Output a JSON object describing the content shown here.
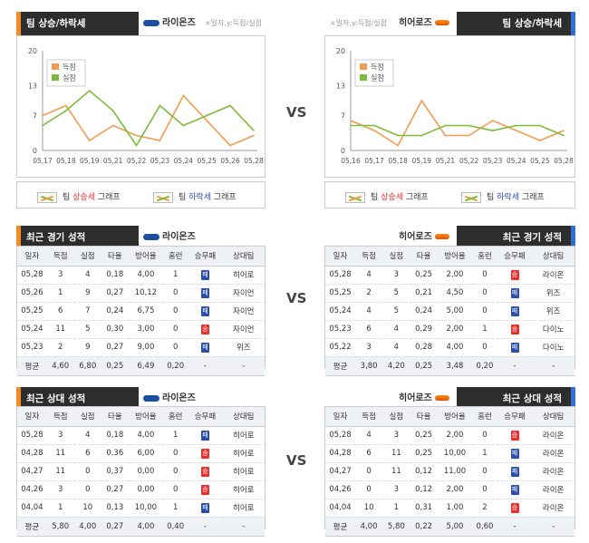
{
  "sections": {
    "trend_title": "팀 상승/하락세",
    "recent_title": "최근 경기 성적",
    "h2h_title": "최근 상대 성적"
  },
  "vs_label": "VS",
  "axis_note": "×일자,y:득점/실점",
  "teams": {
    "left": {
      "name": "라이온즈",
      "logo": "samsung-logo"
    },
    "right": {
      "name": "히어로즈",
      "logo": "heroes-logo"
    }
  },
  "legend": {
    "scored": "득점",
    "allowed": "실점",
    "up_prefix": "팀 ",
    "up_word": "상승세",
    "down_prefix": "팀 ",
    "down_word": "하락세",
    "suffix": " 그래프"
  },
  "colors": {
    "scored": "#f29b50",
    "allowed": "#7cbb3a",
    "win": "#e8312f",
    "loss": "#2d4ea8",
    "left_accent": "#f28c1e",
    "right_accent": "#2e6fd8"
  },
  "table_headers": [
    "일자",
    "득점",
    "실점",
    "타율",
    "방어율",
    "홈런",
    "승무패",
    "상대팀"
  ],
  "result_labels": {
    "W": "승",
    "L": "패"
  },
  "left_recent": {
    "rows": [
      [
        "05,28",
        "3",
        "4",
        "0,18",
        "4,00",
        "1",
        "L",
        "히어로"
      ],
      [
        "05,26",
        "1",
        "9",
        "0,27",
        "10,12",
        "0",
        "L",
        "자이언"
      ],
      [
        "05,25",
        "6",
        "7",
        "0,24",
        "6,75",
        "0",
        "L",
        "자이언"
      ],
      [
        "05,24",
        "11",
        "5",
        "0,30",
        "3,00",
        "0",
        "W",
        "자이언"
      ],
      [
        "05,23",
        "2",
        "9",
        "0,27",
        "9,00",
        "0",
        "L",
        "위즈"
      ]
    ],
    "avg": [
      "평균",
      "4,60",
      "6,80",
      "0,25",
      "6,49",
      "0,20",
      "-",
      "-"
    ]
  },
  "right_recent": {
    "rows": [
      [
        "05,28",
        "4",
        "3",
        "0,25",
        "2,00",
        "0",
        "W",
        "라이온"
      ],
      [
        "05,25",
        "2",
        "5",
        "0,21",
        "4,50",
        "0",
        "L",
        "위즈"
      ],
      [
        "05,24",
        "4",
        "5",
        "0,24",
        "5,00",
        "0",
        "L",
        "위즈"
      ],
      [
        "05,23",
        "6",
        "4",
        "0,29",
        "2,00",
        "1",
        "W",
        "다이노"
      ],
      [
        "05,22",
        "3",
        "4",
        "0,28",
        "4,00",
        "0",
        "L",
        "다이노"
      ]
    ],
    "avg": [
      "평균",
      "3,80",
      "4,20",
      "0,25",
      "3,48",
      "0,20",
      "-",
      "-"
    ]
  },
  "left_h2h": {
    "rows": [
      [
        "05,28",
        "3",
        "4",
        "0,18",
        "4,00",
        "1",
        "L",
        "히어로"
      ],
      [
        "04,28",
        "11",
        "6",
        "0,36",
        "6,00",
        "0",
        "W",
        "히어로"
      ],
      [
        "04,27",
        "11",
        "0",
        "0,37",
        "0,00",
        "0",
        "W",
        "히어로"
      ],
      [
        "04,26",
        "3",
        "0",
        "0,27",
        "0,00",
        "0",
        "W",
        "히어로"
      ],
      [
        "04,04",
        "1",
        "10",
        "0,13",
        "10,00",
        "1",
        "L",
        "히어로"
      ]
    ],
    "avg": [
      "평균",
      "5,80",
      "4,00",
      "0,27",
      "4,00",
      "0,40",
      "-",
      "-"
    ]
  },
  "right_h2h": {
    "rows": [
      [
        "05,28",
        "4",
        "3",
        "0,25",
        "2,00",
        "0",
        "W",
        "라이온"
      ],
      [
        "04,28",
        "6",
        "11",
        "0,25",
        "10,00",
        "1",
        "L",
        "라이온"
      ],
      [
        "04,27",
        "0",
        "11",
        "0,12",
        "11,00",
        "0",
        "L",
        "라이온"
      ],
      [
        "04,26",
        "0",
        "3",
        "0,12",
        "2,00",
        "0",
        "L",
        "라이온"
      ],
      [
        "04,04",
        "10",
        "1",
        "0,31",
        "1,00",
        "2",
        "W",
        "라이온"
      ]
    ],
    "avg": [
      "평균",
      "4,00",
      "5,80",
      "0,22",
      "5,00",
      "0,60",
      "-",
      "-"
    ]
  },
  "chart_data": [
    {
      "type": "line",
      "x": [
        "05,17",
        "05,18",
        "05,19",
        "05,21",
        "05,22",
        "05,23",
        "05,24",
        "05,25",
        "05,26",
        "05,28"
      ],
      "series": [
        {
          "name": "득점",
          "values": [
            7,
            9,
            2,
            5,
            3,
            2,
            11,
            6,
            1,
            3
          ]
        },
        {
          "name": "실점",
          "values": [
            5,
            8,
            12,
            8,
            1,
            9,
            5,
            7,
            9,
            4
          ]
        }
      ],
      "ylim": [
        0,
        20
      ],
      "yticks": [
        0,
        7,
        13,
        20
      ],
      "legend": "top-left",
      "grid": false
    },
    {
      "type": "line",
      "x": [
        "05,16",
        "05,17",
        "05,18",
        "05,19",
        "05,21",
        "05,22",
        "05,23",
        "05,24",
        "05,25",
        "05,28"
      ],
      "series": [
        {
          "name": "득점",
          "values": [
            6,
            4,
            1,
            10,
            3,
            3,
            6,
            4,
            2,
            4
          ]
        },
        {
          "name": "실점",
          "values": [
            5,
            5,
            3,
            3,
            5,
            5,
            4,
            5,
            5,
            3
          ]
        }
      ],
      "ylim": [
        0,
        20
      ],
      "yticks": [
        0,
        7,
        13,
        20
      ],
      "legend": "top-left",
      "grid": false
    }
  ]
}
